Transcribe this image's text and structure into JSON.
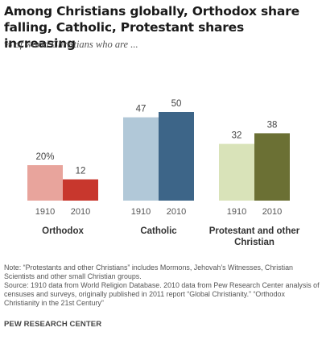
{
  "title": "Among Christians globally, Orthodox share falling, Catholic, Protestant shares increasing",
  "subtitle": "% of world Christians who are ...",
  "chart_data": {
    "type": "bar",
    "title": "Among Christians globally, Orthodox share falling, Catholic, Protestant shares increasing",
    "subtitle": "% of world Christians who are ...",
    "groups": [
      {
        "name": "Orthodox",
        "bars": [
          {
            "year": "1910",
            "value": 20,
            "label": "20%",
            "color": "#e8a49c"
          },
          {
            "year": "2010",
            "value": 12,
            "label": "12",
            "color": "#c8372d"
          }
        ]
      },
      {
        "name": "Catholic",
        "bars": [
          {
            "year": "1910",
            "value": 47,
            "label": "47",
            "color": "#b1c8d8"
          },
          {
            "year": "2010",
            "value": 50,
            "label": "50",
            "color": "#3d6588"
          }
        ]
      },
      {
        "name": "Protestant and other Christian",
        "name_lines": [
          "Protestant and other",
          "Christian"
        ],
        "bars": [
          {
            "year": "1910",
            "value": 32,
            "label": "32",
            "color": "#d9e3b9"
          },
          {
            "year": "2010",
            "value": 38,
            "label": "38",
            "color": "#6b7034"
          }
        ]
      }
    ],
    "ylim": [
      0,
      50
    ],
    "grid": false,
    "legend": "none"
  },
  "notes": {
    "note": "Note: “Protestants and other Christians” includes Mormons, Jehovah’s Witnesses, Christian Scientists and other small Christian groups.",
    "source": "Source: 1910 data from World Religion Database. 2010 data from Pew Research Center analysis of censuses and surveys, originally published in 2011 report “Global Christianity.” “Orthodox Christianity in the 21st Century”"
  },
  "footer": "PEW RESEARCH CENTER"
}
